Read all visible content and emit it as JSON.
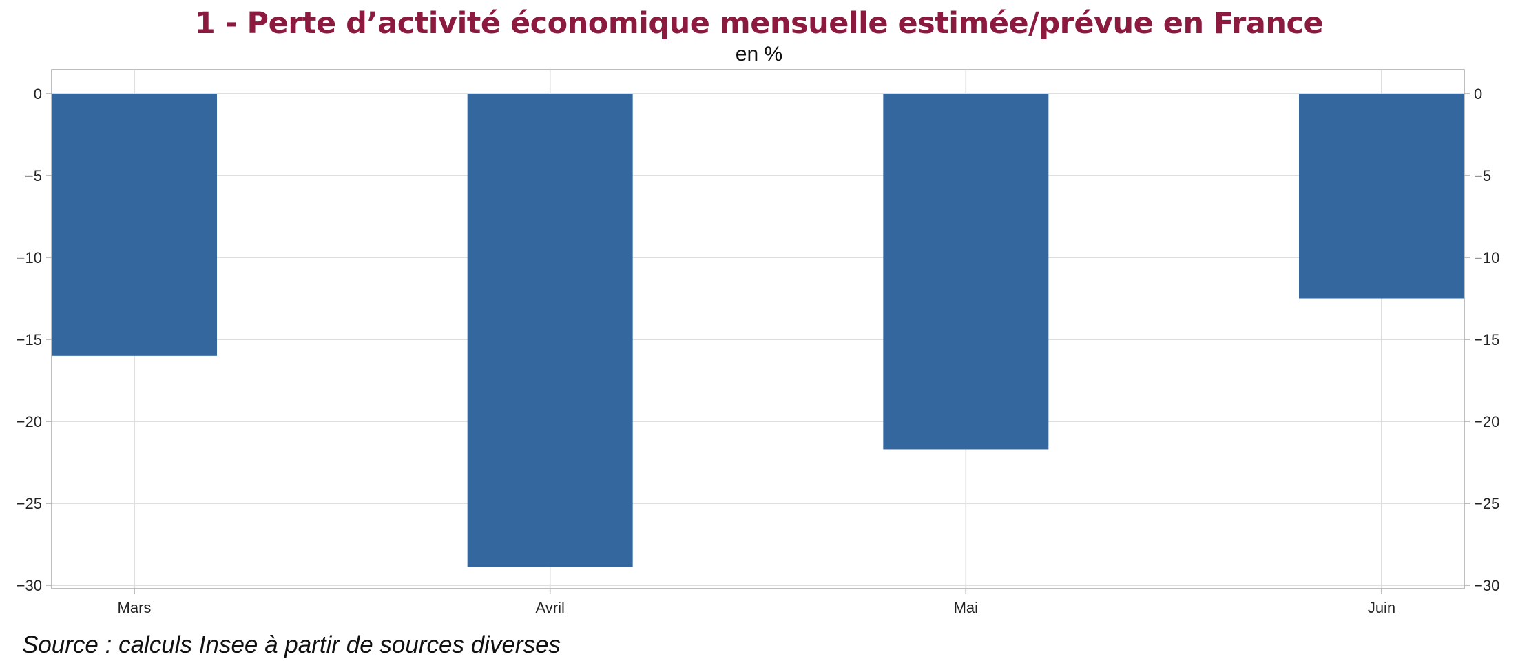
{
  "colors": {
    "title": "#8b1a3e",
    "bar": "#33679e",
    "grid": "#d3d3d3",
    "frame": "#a9a9a9"
  },
  "chart_data": {
    "type": "bar",
    "title": "1 - Perte d’activité économique mensuelle estimée/prévue en France",
    "subtitle": "en %",
    "categories": [
      "Mars",
      "Avril",
      "Mai",
      "Juin"
    ],
    "values": [
      -16,
      -28.9,
      -21.7,
      -12.5
    ],
    "ylim": [
      -30,
      0
    ],
    "yticks": [
      0,
      -5,
      -10,
      -15,
      -20,
      -25,
      -30
    ],
    "ytick_labels": [
      "0",
      "−5",
      "−10",
      "−15",
      "−20",
      "−25",
      "−30"
    ],
    "y_axis_both_sides": true,
    "grid": true,
    "legend": "none"
  },
  "source": "Source : calculs Insee à partir de sources diverses"
}
